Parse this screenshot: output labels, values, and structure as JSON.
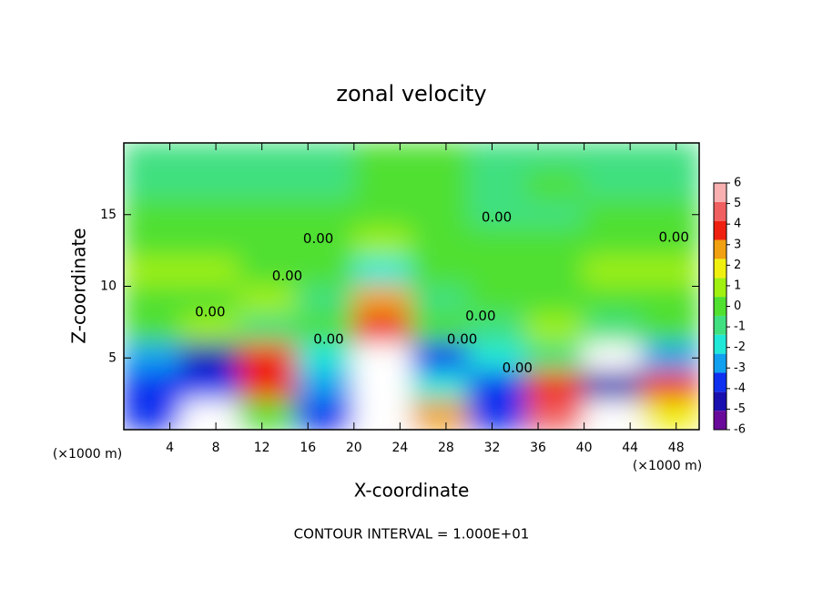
{
  "chart_data": {
    "type": "contour",
    "title": "zonal velocity",
    "x_label": "X-coordinate",
    "y_label": "Z-coordinate",
    "x_unit_labels": [
      "(×1000 m)",
      "(×1000 m)"
    ],
    "footer": "CONTOUR INTERVAL = 1.000E+01",
    "xlim": [
      0,
      50
    ],
    "ylim": [
      0,
      20
    ],
    "xticks": [
      4,
      8,
      12,
      16,
      20,
      24,
      28,
      32,
      36,
      40,
      44,
      48
    ],
    "yticks": [
      5,
      10,
      15
    ],
    "colorbar_ticks": [
      6,
      5,
      4,
      3,
      2,
      1,
      0,
      -1,
      -2,
      -3,
      -4,
      -5,
      -6
    ],
    "colormap": [
      "#6a0a9a",
      "#1a10b0",
      "#1030f0",
      "#10a0f0",
      "#20e8d8",
      "#40e080",
      "#50e030",
      "#a0f010",
      "#f0f010",
      "#f0a010",
      "#f02010",
      "#f06060",
      "#f8b0b0"
    ],
    "z": [
      [
        -1,
        -1,
        -1,
        -1,
        0,
        0,
        -1,
        -1,
        -1,
        -1
      ],
      [
        -1,
        -1,
        -1,
        -1,
        0,
        0,
        -1,
        0,
        -1,
        -1
      ],
      [
        0,
        0,
        0,
        0,
        0,
        0,
        -1,
        -1,
        0,
        0
      ],
      [
        0,
        0,
        0,
        0,
        1,
        0,
        0,
        0,
        0,
        0
      ],
      [
        1,
        1,
        0,
        0,
        -2,
        0,
        0,
        0,
        1,
        1
      ],
      [
        0,
        0,
        1,
        -1,
        3,
        -1,
        0,
        0,
        0,
        0
      ],
      [
        0,
        1,
        -1,
        0,
        4,
        0,
        -1,
        1,
        -1,
        0
      ],
      [
        -3,
        -5,
        4,
        -2,
        7,
        -4,
        -2,
        -1,
        7,
        -3
      ],
      [
        -4,
        -4,
        4,
        -3,
        7,
        -2,
        -4,
        4,
        -5,
        4
      ],
      [
        -4,
        7,
        0,
        -4,
        7,
        3,
        -4,
        5,
        7,
        2
      ]
    ],
    "contour_labels": [
      {
        "label": "0.00",
        "x": 16.9,
        "y": 13.3
      },
      {
        "label": "0.00",
        "x": 14.2,
        "y": 10.7
      },
      {
        "label": "0.00",
        "x": 7.5,
        "y": 8.2
      },
      {
        "label": "0.00",
        "x": 17.8,
        "y": 6.3
      },
      {
        "label": "0.00",
        "x": 32.4,
        "y": 14.8
      },
      {
        "label": "0.00",
        "x": 31.0,
        "y": 7.9
      },
      {
        "label": "0.00",
        "x": 29.4,
        "y": 6.3
      },
      {
        "label": "0.00",
        "x": 34.2,
        "y": 4.3
      },
      {
        "label": "0.00",
        "x": 47.8,
        "y": 13.4
      }
    ]
  }
}
